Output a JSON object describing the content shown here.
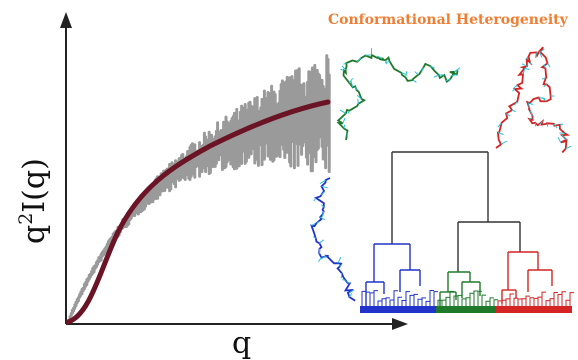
{
  "figure": {
    "title": "Conformational Heterogeneity",
    "x_axis_label": "q",
    "y_axis_label_base": "q",
    "y_axis_label_exp": "2",
    "y_axis_label_rest": "I(q)"
  },
  "colors": {
    "title": "#f07d32",
    "axes": "#222222",
    "noisy_data": "#9a9a9a",
    "fit_curve": "#6a1426",
    "cluster_green": "#1e7a2a",
    "cluster_red": "#d42424",
    "cluster_blue": "#2233cc",
    "dendrogram_trunk": "#333333",
    "atom_accent": "#25c3d8"
  },
  "structures": [
    {
      "name": "conformer-green",
      "color": "green"
    },
    {
      "name": "conformer-red",
      "color": "red"
    },
    {
      "name": "conformer-blue",
      "color": "blue"
    }
  ],
  "dendrogram": {
    "clusters": [
      "blue",
      "green",
      "red"
    ]
  }
}
